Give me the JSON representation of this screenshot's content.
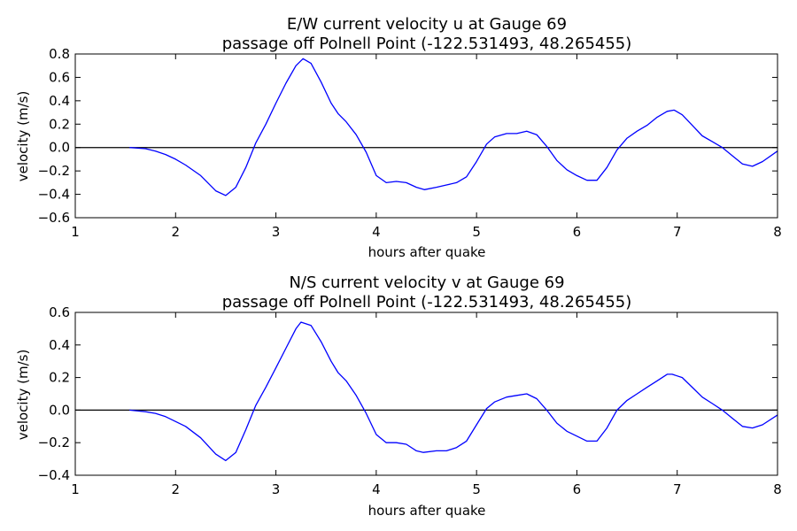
{
  "chart_data": [
    {
      "type": "line",
      "title": "E/W current velocity u at Gauge 69",
      "subtitle": "passage off Polnell Point  (-122.531493, 48.265455)",
      "xlabel": "hours after quake",
      "ylabel": "velocity (m/s)",
      "xlim": [
        1,
        8
      ],
      "ylim": [
        -0.6,
        0.8
      ],
      "xticks": [
        "1",
        "2",
        "3",
        "4",
        "5",
        "6",
        "7",
        "8"
      ],
      "yticks": [
        "−0.6",
        "−0.4",
        "−0.2",
        "0.0",
        "0.2",
        "0.4",
        "0.6",
        "0.8"
      ],
      "ytick_values": [
        -0.6,
        -0.4,
        -0.2,
        0.0,
        0.2,
        0.4,
        0.6,
        0.8
      ],
      "grid": false,
      "zero_line": true,
      "color": "#0000ff",
      "series": [
        {
          "x": [
            1.54,
            1.7,
            1.8,
            1.9,
            2.0,
            2.1,
            2.25,
            2.4,
            2.5,
            2.6,
            2.7,
            2.8,
            2.9,
            3.0,
            3.1,
            3.2,
            3.27,
            3.35,
            3.45,
            3.55,
            3.62,
            3.7,
            3.8,
            3.9,
            4.0,
            4.1,
            4.2,
            4.3,
            4.4,
            4.48,
            4.6,
            4.7,
            4.8,
            4.9,
            5.0,
            5.1,
            5.18,
            5.3,
            5.4,
            5.5,
            5.6,
            5.7,
            5.8,
            5.9,
            6.0,
            6.1,
            6.2,
            6.3,
            6.4,
            6.5,
            6.6,
            6.7,
            6.8,
            6.9,
            6.97,
            7.05,
            7.15,
            7.25,
            7.35,
            7.45,
            7.55,
            7.65,
            7.75,
            7.85,
            8.0
          ],
          "y": [
            0.0,
            -0.01,
            -0.03,
            -0.06,
            -0.1,
            -0.15,
            -0.24,
            -0.37,
            -0.41,
            -0.34,
            -0.17,
            0.04,
            0.2,
            0.38,
            0.55,
            0.7,
            0.76,
            0.72,
            0.56,
            0.38,
            0.29,
            0.22,
            0.11,
            -0.04,
            -0.24,
            -0.3,
            -0.29,
            -0.3,
            -0.34,
            -0.36,
            -0.34,
            -0.32,
            -0.3,
            -0.25,
            -0.12,
            0.03,
            0.09,
            0.12,
            0.12,
            0.14,
            0.11,
            0.01,
            -0.11,
            -0.19,
            -0.24,
            -0.28,
            -0.28,
            -0.17,
            -0.02,
            0.08,
            0.14,
            0.19,
            0.26,
            0.31,
            0.32,
            0.28,
            0.19,
            0.1,
            0.05,
            0.0,
            -0.07,
            -0.14,
            -0.16,
            -0.12,
            -0.03
          ]
        }
      ]
    },
    {
      "type": "line",
      "title": "N/S current velocity v at Gauge 69",
      "subtitle": "passage off Polnell Point  (-122.531493, 48.265455)",
      "xlabel": "hours after quake",
      "ylabel": "velocity (m/s)",
      "xlim": [
        1,
        8
      ],
      "ylim": [
        -0.4,
        0.6
      ],
      "xticks": [
        "1",
        "2",
        "3",
        "4",
        "5",
        "6",
        "7",
        "8"
      ],
      "yticks": [
        "−0.4",
        "−0.2",
        "0.0",
        "0.2",
        "0.4",
        "0.6"
      ],
      "ytick_values": [
        -0.4,
        -0.2,
        0.0,
        0.2,
        0.4,
        0.6
      ],
      "grid": false,
      "zero_line": true,
      "color": "#0000ff",
      "series": [
        {
          "x": [
            1.54,
            1.7,
            1.8,
            1.9,
            2.0,
            2.1,
            2.25,
            2.4,
            2.5,
            2.6,
            2.7,
            2.8,
            2.9,
            3.0,
            3.1,
            3.2,
            3.25,
            3.35,
            3.45,
            3.55,
            3.62,
            3.7,
            3.8,
            3.9,
            4.0,
            4.1,
            4.2,
            4.3,
            4.4,
            4.47,
            4.6,
            4.7,
            4.8,
            4.9,
            5.0,
            5.1,
            5.18,
            5.3,
            5.4,
            5.5,
            5.6,
            5.7,
            5.8,
            5.9,
            6.0,
            6.1,
            6.2,
            6.3,
            6.4,
            6.5,
            6.6,
            6.7,
            6.8,
            6.9,
            6.95,
            7.05,
            7.15,
            7.25,
            7.35,
            7.45,
            7.55,
            7.65,
            7.75,
            7.85,
            8.0
          ],
          "y": [
            0.0,
            -0.01,
            -0.02,
            -0.04,
            -0.07,
            -0.1,
            -0.17,
            -0.27,
            -0.31,
            -0.26,
            -0.12,
            0.03,
            0.14,
            0.26,
            0.38,
            0.5,
            0.54,
            0.52,
            0.42,
            0.3,
            0.23,
            0.18,
            0.09,
            -0.02,
            -0.15,
            -0.2,
            -0.2,
            -0.21,
            -0.25,
            -0.26,
            -0.25,
            -0.25,
            -0.23,
            -0.19,
            -0.09,
            0.01,
            0.05,
            0.08,
            0.09,
            0.1,
            0.07,
            0.0,
            -0.08,
            -0.13,
            -0.16,
            -0.19,
            -0.19,
            -0.11,
            0.0,
            0.06,
            0.1,
            0.14,
            0.18,
            0.22,
            0.22,
            0.2,
            0.14,
            0.08,
            0.04,
            0.0,
            -0.05,
            -0.1,
            -0.11,
            -0.09,
            -0.03
          ]
        }
      ]
    }
  ]
}
